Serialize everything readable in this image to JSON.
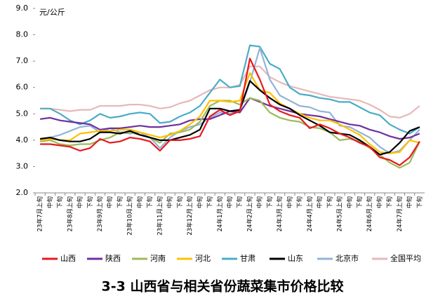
{
  "chart_data": {
    "type": "line",
    "title": "3-3 山西省与相关省份蔬菜集市价格比较",
    "y_unit": "元/公斤",
    "categories": [
      "23年7月上旬",
      "中旬",
      "下旬",
      "23年8月上旬",
      "中旬",
      "下旬",
      "23年9月上旬",
      "中旬",
      "下旬",
      "23年10月上旬",
      "中旬",
      "下旬",
      "23年11月上旬",
      "中旬",
      "下旬",
      "23年12月上旬",
      "中旬",
      "下旬",
      "24年1月上旬",
      "中旬",
      "下旬",
      "24年2月上旬",
      "中旬",
      "下旬",
      "24年3月上旬",
      "中旬",
      "下旬",
      "24年4月上旬",
      "中旬",
      "下旬",
      "24年5月上旬",
      "中旬",
      "下旬",
      "24年6月上旬",
      "中旬",
      "下旬",
      "24年7月上旬",
      "中旬",
      "下旬"
    ],
    "ylim": [
      2,
      9
    ],
    "yticks": [
      {
        "value": 2,
        "label": "2.0"
      },
      {
        "value": 3,
        "label": "3.0"
      },
      {
        "value": 4,
        "label": "4.0"
      },
      {
        "value": 5,
        "label": "5.0"
      },
      {
        "value": 6,
        "label": "6.0"
      },
      {
        "value": 7,
        "label": "7.0"
      },
      {
        "value": 8,
        "label": "8.0"
      },
      {
        "value": 9,
        "label": "9.0"
      }
    ],
    "legend": "bottom",
    "series": [
      {
        "name": "全国平均",
        "color": "#e6b9b8",
        "values": [
          5.2,
          5.2,
          5.15,
          5.1,
          5.15,
          5.15,
          5.3,
          5.3,
          5.3,
          5.35,
          5.35,
          5.3,
          5.2,
          5.25,
          5.4,
          5.5,
          5.7,
          5.9,
          6.0,
          6.0,
          6.1,
          6.8,
          6.8,
          6.4,
          6.2,
          6.05,
          5.95,
          5.85,
          5.75,
          5.65,
          5.6,
          5.55,
          5.5,
          5.35,
          5.15,
          4.9,
          4.85,
          5.0,
          5.3
        ]
      },
      {
        "name": "甘肃",
        "color": "#4bacc6",
        "values": [
          5.2,
          5.2,
          5.0,
          4.75,
          4.6,
          4.75,
          5.0,
          4.85,
          4.9,
          5.0,
          5.05,
          5.0,
          4.65,
          4.7,
          4.9,
          5.05,
          5.3,
          5.8,
          6.3,
          6.0,
          6.05,
          7.6,
          7.55,
          6.9,
          6.7,
          6.0,
          5.75,
          5.7,
          5.6,
          5.55,
          5.45,
          5.45,
          5.25,
          5.05,
          4.95,
          4.6,
          4.4,
          4.25,
          4.5
        ]
      },
      {
        "name": "北京市",
        "color": "#95b3d7",
        "values": [
          4.0,
          4.1,
          4.2,
          4.35,
          4.5,
          4.55,
          4.3,
          4.45,
          4.3,
          4.25,
          4.3,
          4.1,
          3.7,
          4.1,
          4.35,
          4.5,
          4.6,
          4.85,
          5.05,
          5.0,
          5.1,
          6.2,
          7.5,
          6.3,
          5.7,
          5.5,
          5.3,
          5.25,
          5.1,
          5.05,
          4.55,
          4.5,
          4.3,
          4.1,
          3.75,
          3.5,
          3.6,
          4.0,
          4.4
        ]
      },
      {
        "name": "陕西",
        "color": "#7030a0",
        "values": [
          4.8,
          4.85,
          4.75,
          4.7,
          4.65,
          4.6,
          4.4,
          4.45,
          4.45,
          4.5,
          4.55,
          4.5,
          4.5,
          4.55,
          4.6,
          4.75,
          4.8,
          4.8,
          4.95,
          5.1,
          5.05,
          5.6,
          5.45,
          5.3,
          5.2,
          5.1,
          5.0,
          4.95,
          4.9,
          4.8,
          4.7,
          4.6,
          4.55,
          4.4,
          4.3,
          4.15,
          4.05,
          4.1,
          4.25
        ]
      },
      {
        "name": "河南",
        "color": "#9bbb59",
        "values": [
          3.95,
          4.0,
          3.85,
          3.8,
          3.85,
          3.85,
          4.0,
          4.1,
          4.3,
          4.3,
          4.2,
          4.1,
          3.9,
          4.25,
          4.3,
          4.4,
          4.7,
          5.3,
          5.5,
          5.5,
          5.35,
          5.6,
          5.5,
          5.05,
          4.85,
          4.75,
          4.7,
          4.5,
          4.45,
          4.3,
          4.0,
          4.05,
          3.95,
          3.7,
          3.45,
          3.15,
          2.95,
          3.15,
          3.95
        ]
      },
      {
        "name": "河北",
        "color": "#ffc000",
        "values": [
          4.0,
          4.05,
          4.0,
          4.0,
          4.25,
          4.3,
          4.35,
          4.35,
          4.4,
          4.4,
          4.3,
          4.2,
          4.1,
          4.2,
          4.35,
          4.6,
          4.9,
          5.5,
          5.5,
          5.45,
          5.5,
          6.55,
          5.9,
          5.8,
          5.4,
          5.2,
          5.0,
          4.85,
          4.75,
          4.75,
          4.6,
          4.4,
          4.2,
          3.85,
          3.55,
          3.5,
          3.55,
          4.0,
          3.9
        ]
      },
      {
        "name": "山东",
        "color": "#000000",
        "values": [
          4.05,
          4.1,
          4.0,
          3.95,
          3.95,
          4.05,
          4.3,
          4.3,
          4.25,
          4.35,
          4.2,
          4.1,
          4.0,
          4.0,
          4.1,
          4.2,
          4.4,
          5.2,
          5.2,
          5.1,
          5.15,
          6.25,
          5.9,
          5.6,
          5.35,
          5.2,
          4.95,
          4.75,
          4.55,
          4.3,
          4.25,
          4.2,
          4.0,
          3.75,
          3.45,
          3.55,
          3.9,
          4.35,
          4.5
        ]
      },
      {
        "name": "山西",
        "color": "#e8191f",
        "values": [
          3.85,
          3.85,
          3.8,
          3.75,
          3.6,
          3.7,
          4.05,
          3.9,
          3.95,
          4.1,
          4.05,
          3.95,
          3.6,
          4.0,
          4.0,
          4.05,
          4.15,
          4.9,
          5.15,
          4.95,
          5.1,
          7.1,
          6.3,
          5.35,
          5.1,
          4.95,
          4.85,
          4.45,
          4.6,
          4.45,
          4.25,
          4.1,
          3.9,
          3.75,
          3.35,
          3.25,
          3.05,
          3.35,
          3.95
        ]
      }
    ],
    "legend_order": [
      "山西",
      "陕西",
      "河南",
      "河北",
      "甘肃",
      "山东",
      "北京市",
      "全国平均"
    ]
  }
}
